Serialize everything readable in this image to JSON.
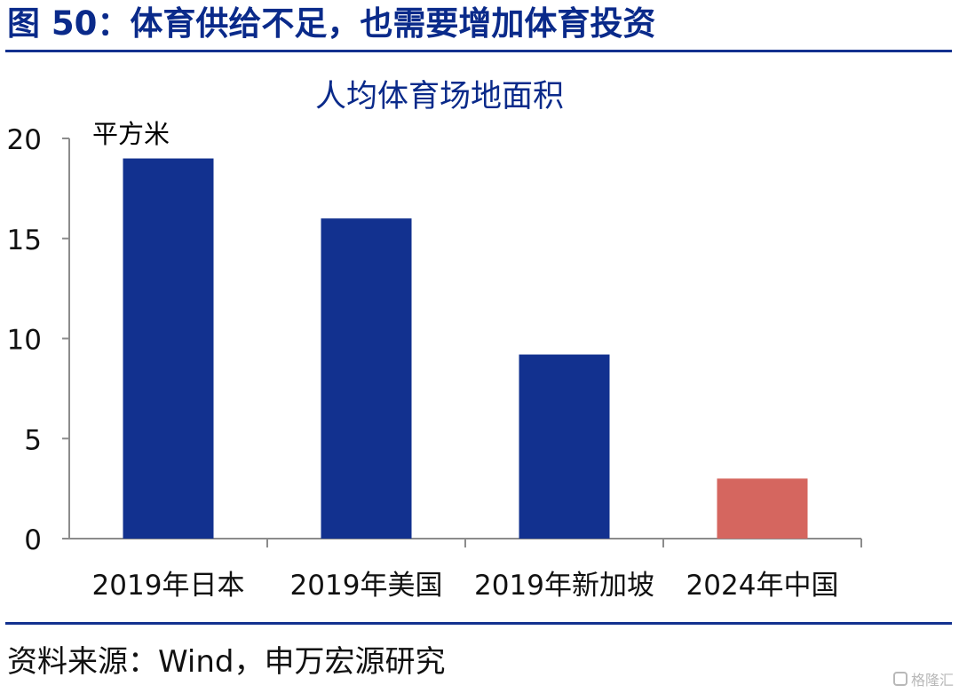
{
  "figure_title": "图 50：体育供给不足，也需要增加体育投资",
  "source": "资料来源：Wind，申万宏源研究",
  "watermark": "格隆汇",
  "colors": {
    "primary_bar": "#12318f",
    "highlight_bar": "#d5665f",
    "rule": "#13318f",
    "axis": "#8c8c8c"
  },
  "chart_data": {
    "type": "bar",
    "title": "人均体育场地面积",
    "ylabel": "平方米",
    "xlabel": "",
    "categories": [
      "2019年日本",
      "2019年美国",
      "2019年新加坡",
      "2024年中国"
    ],
    "values": [
      19.0,
      16.0,
      9.2,
      3.0
    ],
    "highlight": "2024年中国",
    "ylim": [
      0,
      20
    ],
    "yticks": [
      0,
      5,
      10,
      15,
      20
    ],
    "grid": false,
    "legend": "none"
  }
}
